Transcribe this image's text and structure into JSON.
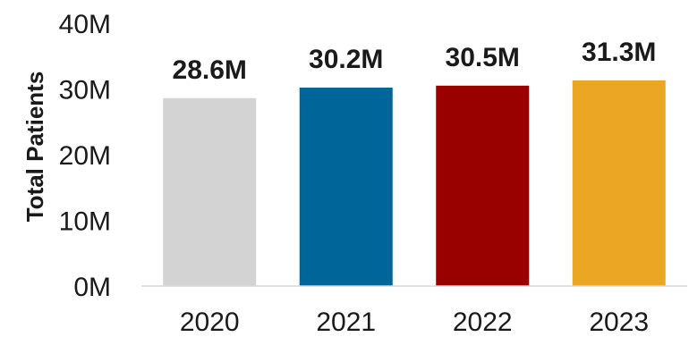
{
  "chart_data": {
    "type": "bar",
    "ylabel": "Total Patients",
    "categories": [
      "2020",
      "2021",
      "2022",
      "2023"
    ],
    "values": [
      28.6,
      30.2,
      30.5,
      31.3
    ],
    "data_labels": [
      "28.6M",
      "30.2M",
      "30.5M",
      "31.3M"
    ],
    "bar_colors": [
      "#d3d3d3",
      "#00669a",
      "#990000",
      "#eba723"
    ],
    "ylim": [
      0,
      40
    ],
    "y_ticks": [
      0,
      10,
      20,
      30,
      40
    ],
    "y_tick_labels": [
      "0M",
      "10M",
      "20M",
      "30M",
      "40M"
    ],
    "grid": false,
    "legend": "none"
  }
}
